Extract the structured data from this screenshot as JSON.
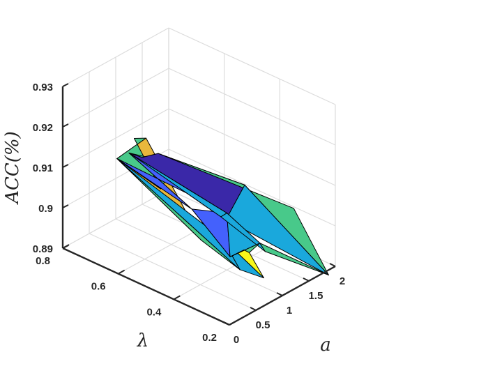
{
  "chart_data": {
    "type": "surface3d",
    "title": "",
    "xlabel": "a",
    "ylabel": "λ",
    "zlabel": "ACC(%)",
    "x_ticks": [
      "0",
      "0.5",
      "1",
      "1.5",
      "2"
    ],
    "y_ticks": [
      "0.2",
      "0.4",
      "0.6",
      "0.8"
    ],
    "z_ticks": [
      "0.89",
      "0.9",
      "0.91",
      "0.92",
      "0.93"
    ],
    "xlim": [
      0,
      2
    ],
    "ylim": [
      0.2,
      0.8
    ],
    "zlim": [
      0.89,
      0.93
    ],
    "grid": true,
    "colors": {
      "green": "#48c98a",
      "orange": "#e8b83c",
      "cyan": "#1aa8dc",
      "yellow": "#f7f71a",
      "blue": "#4461fc",
      "navy": "#3a28a8"
    },
    "vertices": [
      {
        "x": 0,
        "y": 0.3,
        "z": 0.9077
      },
      {
        "x": 0,
        "y": 0.5,
        "z": 0.9267
      },
      {
        "x": 0.3,
        "y": 0.6,
        "z": 0.9213
      },
      {
        "x": 0.5,
        "y": 0.7,
        "z": 0.9117
      },
      {
        "x": 0.8,
        "y": 0.6,
        "z": 0.9052
      },
      {
        "x": 1.0,
        "y": 0.6,
        "z": 0.9084
      },
      {
        "x": 1.1,
        "y": 0.7,
        "z": 0.9076
      },
      {
        "x": 1.25,
        "y": 0.8,
        "z": 0.9045
      },
      {
        "x": 1.5,
        "y": 0.8,
        "z": 0.9016
      },
      {
        "x": 1.8,
        "y": 0.8,
        "z": 0.9004
      },
      {
        "x": 0.2,
        "y": 0.2,
        "z": 0.9022
      },
      {
        "x": 0.65,
        "y": 0.2,
        "z": 0.8969
      },
      {
        "x": 0.4,
        "y": 0.3,
        "z": 0.9052
      },
      {
        "x": 0.8,
        "y": 0.3,
        "z": 0.8996
      },
      {
        "x": 0.9,
        "y": 0.3,
        "z": 0.8982
      },
      {
        "x": 0.6,
        "y": 0.45,
        "z": 0.9064
      },
      {
        "x": 0.8,
        "y": 0.35,
        "z": 0.8963
      },
      {
        "x": 1.0,
        "y": 0.4,
        "z": 0.9041
      },
      {
        "x": 1.1,
        "y": 0.3,
        "z": 0.8991
      },
      {
        "x": 1.2,
        "y": 0.3,
        "z": 0.8963
      },
      {
        "x": 1.15,
        "y": 0.45,
        "z": 0.9005
      },
      {
        "x": 1.3,
        "y": 0.45,
        "z": 0.9
      },
      {
        "x": 1.6,
        "y": 0.45,
        "z": 0.9051
      },
      {
        "x": 2.0,
        "y": 0.35,
        "z": 0.8996
      },
      {
        "x": 1.35,
        "y": 0.1,
        "z": 0.8957
      }
    ],
    "faces": [
      {
        "v": [
          0,
          1,
          3
        ],
        "color": "orange"
      },
      {
        "v": [
          1,
          2,
          4,
          3
        ],
        "color": "green"
      },
      {
        "v": [
          3,
          4,
          5,
          6,
          7,
          15
        ],
        "color": "green"
      },
      {
        "v": [
          7,
          8,
          9,
          22,
          21,
          20
        ],
        "color": "navy"
      },
      {
        "v": [
          9,
          23,
          24,
          22
        ],
        "color": "green"
      },
      {
        "v": [
          22,
          21,
          20,
          24
        ],
        "color": "cyan"
      },
      {
        "v": [
          0,
          3,
          10
        ],
        "color": "green"
      },
      {
        "v": [
          3,
          12,
          10
        ],
        "color": "cyan"
      },
      {
        "v": [
          3,
          15,
          7,
          17
        ],
        "color": "blue"
      },
      {
        "v": [
          12,
          11,
          10
        ],
        "color": "cyan"
      },
      {
        "v": [
          12,
          13,
          14,
          11
        ],
        "color": "yellow"
      },
      {
        "v": [
          12,
          15,
          16,
          13
        ],
        "color": "green"
      },
      {
        "v": [
          15,
          17,
          16
        ],
        "color": "blue"
      },
      {
        "v": [
          16,
          17,
          18
        ],
        "color": "cyan"
      },
      {
        "v": [
          17,
          20,
          19,
          18
        ],
        "color": "cyan"
      },
      {
        "v": [
          18,
          19,
          24
        ],
        "color": "green"
      },
      {
        "v": [
          13,
          16,
          18,
          14
        ],
        "color": "green"
      },
      {
        "v": [
          17,
          7,
          20
        ],
        "color": "cyan"
      }
    ]
  }
}
